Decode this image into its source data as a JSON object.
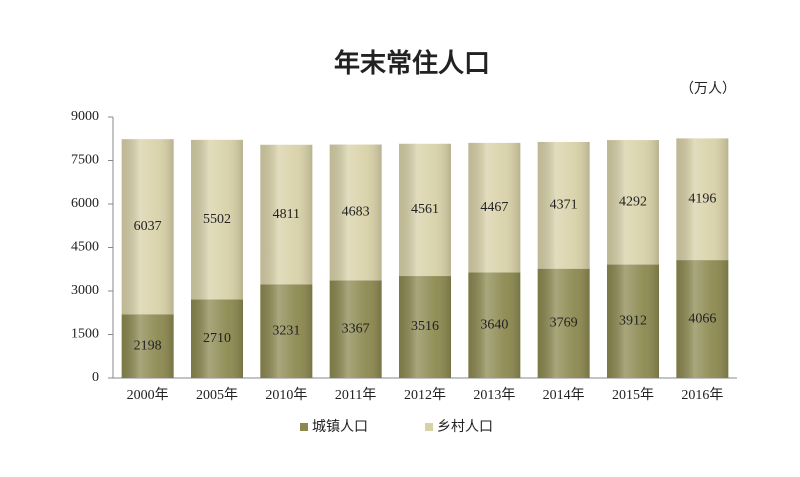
{
  "chart_data": {
    "type": "stacked_bar",
    "title": "年末常住人口",
    "unit": "（万人）",
    "categories": [
      "2000年",
      "2005年",
      "2010年",
      "2011年",
      "2012年",
      "2013年",
      "2014年",
      "2015年",
      "2016年"
    ],
    "series": [
      {
        "name": "城镇人口",
        "color": "#8c8950",
        "values": [
          2198,
          2710,
          3231,
          3367,
          3516,
          3640,
          3769,
          3912,
          4066
        ]
      },
      {
        "name": "乡村人口",
        "color": "#d8d1a8",
        "values": [
          6037,
          5502,
          4811,
          4683,
          4561,
          4467,
          4371,
          4292,
          4196
        ]
      }
    ],
    "ylim": [
      0,
      9000
    ],
    "yticks": [
      0,
      1500,
      3000,
      4500,
      6000,
      7500,
      9000
    ],
    "grid": false
  }
}
